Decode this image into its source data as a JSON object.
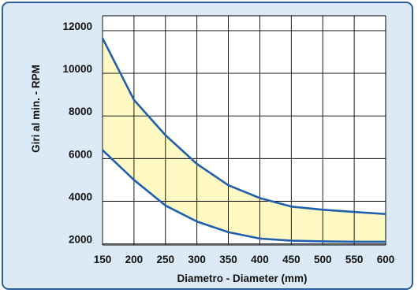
{
  "chart_data": {
    "type": "area",
    "xlabel": "Diametro - Diameter (mm)",
    "ylabel": "Giri al min. - RPM",
    "x": [
      150,
      200,
      250,
      300,
      350,
      400,
      450,
      500,
      550,
      600
    ],
    "x_ticks": [
      "150",
      "200",
      "250",
      "300",
      "350",
      "400",
      "450",
      "500",
      "550",
      "600"
    ],
    "y_ticks": [
      "2000",
      "4000",
      "6000",
      "8000",
      "10000",
      "12000"
    ],
    "y_tick_values": [
      2000,
      4000,
      6000,
      8000,
      10000,
      12000
    ],
    "xlim": [
      150,
      600
    ],
    "ylim": [
      1950,
      12700
    ],
    "grid": true,
    "series": [
      {
        "values": [
          11650,
          8750,
          7100,
          5750,
          4750,
          4150,
          3750,
          3600,
          3500,
          3400
        ]
      },
      {
        "values": [
          6400,
          5000,
          3800,
          3050,
          2550,
          2250,
          2150,
          2120,
          2100,
          2100
        ]
      }
    ],
    "colors": {
      "band_fill": "#fff9c4",
      "line": "#1f5fae",
      "grid": "#000000",
      "background": "#dce9f6",
      "border": "#2d5f9e"
    }
  }
}
